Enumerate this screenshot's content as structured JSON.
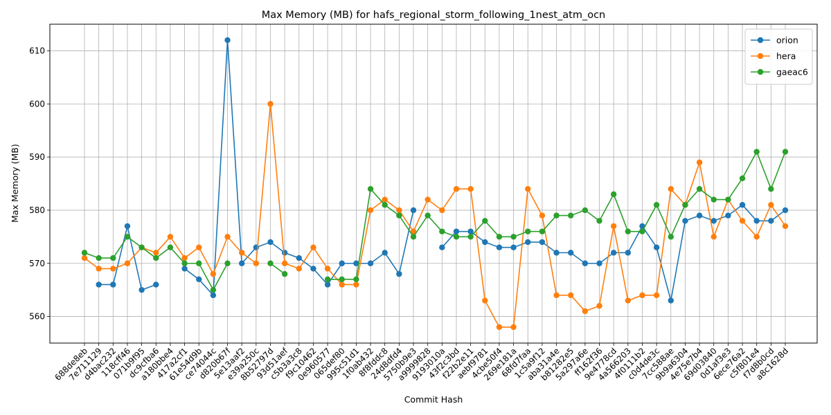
{
  "chart_data": {
    "type": "line",
    "title": "Max Memory (MB) for hafs_regional_storm_following_1nest_atm_ocn",
    "xlabel": "Commit Hash",
    "ylabel": "Max Memory (MB)",
    "ylim": [
      555,
      615
    ],
    "yticks": [
      560,
      570,
      580,
      590,
      600,
      610
    ],
    "grid": true,
    "legend_position": "top-right",
    "categories": [
      "688de8eb",
      "7e711129",
      "d4bac232",
      "118cff46",
      "071b9f95",
      "dc9cfba6",
      "a180bbe4",
      "417a2cf1",
      "61e54d9b",
      "ce74044c",
      "d820b67f",
      "5e13aaf2",
      "e39a250c",
      "8b52797d",
      "93d51aef",
      "c5b3a3c8",
      "f9c10462",
      "0e960577",
      "065def80",
      "995c51d1",
      "1f0ab432",
      "8f8fddc8",
      "24d8dfd4",
      "5750b9e3",
      "a9999828",
      "9193010a",
      "43f2c3bd",
      "f22b2e11",
      "aebf9781",
      "4cbe50f4",
      "269e181a",
      "68fd7faa",
      "1c5a9f12",
      "aba31a4e",
      "b81282e5",
      "5a297a6e",
      "ff162f36",
      "9e4778cd",
      "4a566203",
      "4f0111b2",
      "c0d4de3c",
      "7cc588ae",
      "9b9a6304",
      "4e75e7b4",
      "69d03840",
      "0d1af3e3",
      "6ece76a2",
      "c5f801e4",
      "f7d8b0cd",
      "a8c1628d"
    ],
    "series": [
      {
        "name": "orion",
        "color": "#1f77b4",
        "values": [
          null,
          566,
          566,
          577,
          565,
          566,
          null,
          569,
          567,
          564,
          612,
          570,
          573,
          574,
          572,
          571,
          569,
          566,
          570,
          570,
          570,
          572,
          568,
          580,
          null,
          573,
          576,
          576,
          574,
          573,
          573,
          574,
          574,
          572,
          572,
          570,
          570,
          572,
          572,
          577,
          573,
          563,
          578,
          579,
          578,
          579,
          581,
          578,
          578,
          580
        ]
      },
      {
        "name": "hera",
        "color": "#ff7f0e",
        "values": [
          571,
          569,
          569,
          570,
          573,
          572,
          575,
          571,
          573,
          568,
          575,
          572,
          570,
          600,
          570,
          569,
          573,
          569,
          566,
          566,
          580,
          582,
          580,
          576,
          582,
          580,
          584,
          584,
          563,
          558,
          558,
          584,
          579,
          564,
          564,
          561,
          562,
          577,
          563,
          564,
          564,
          584,
          581,
          589,
          575,
          582,
          578,
          575,
          581,
          577
        ]
      },
      {
        "name": "gaeac6",
        "color": "#2ca02c",
        "values": [
          572,
          571,
          571,
          575,
          573,
          571,
          573,
          570,
          570,
          565,
          570,
          null,
          null,
          570,
          568,
          null,
          null,
          567,
          567,
          567,
          584,
          581,
          579,
          575,
          579,
          576,
          575,
          575,
          578,
          575,
          575,
          576,
          576,
          579,
          579,
          580,
          578,
          583,
          576,
          576,
          581,
          575,
          581,
          584,
          582,
          582,
          586,
          591,
          584,
          591
        ]
      }
    ]
  }
}
